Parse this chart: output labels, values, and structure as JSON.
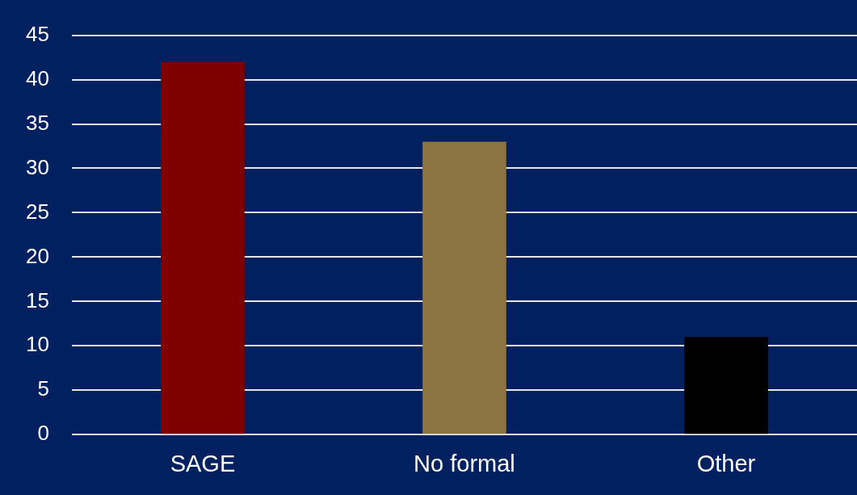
{
  "chart_data": {
    "type": "bar",
    "categories": [
      "SAGE",
      "No formal",
      "Other"
    ],
    "values": [
      42,
      33,
      11
    ],
    "colors": [
      "#800000",
      "#8b7441",
      "#000000"
    ],
    "ylim": [
      0,
      45
    ],
    "yticks": [
      0,
      5,
      10,
      15,
      20,
      25,
      30,
      35,
      40,
      45
    ],
    "grid": "y",
    "legend": false
  }
}
